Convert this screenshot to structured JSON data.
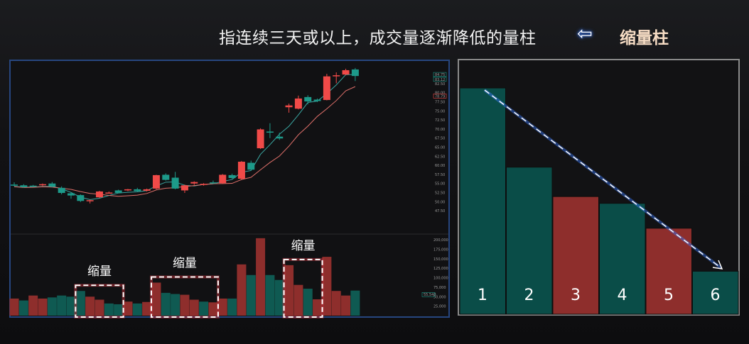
{
  "header": {
    "definition": "指连续三天或以上，成交量逐渐降低的量柱",
    "arrow_icon": "left-arrow-icon",
    "term": "缩量柱"
  },
  "colors": {
    "up": "#f04a48",
    "down": "#1d9a8a",
    "vol_up": "#8e2e2c",
    "vol_down": "#0f5a52",
    "ma_fast": "#3aa5a0",
    "ma_slow": "#e0706a",
    "box": "#ffffff",
    "frame": "#27467f"
  },
  "chart_data": [
    {
      "type": "candlestick",
      "price_axis": {
        "ticks": [
          "82.50",
          "80.00",
          "77.50",
          "75.00",
          "72.50",
          "70.00",
          "67.50",
          "65.00",
          "62.50",
          "60.00",
          "57.50",
          "55.00",
          "52.50",
          "50.00",
          "47.50"
        ],
        "range": [
          47.5,
          87.5
        ]
      },
      "price_readouts": {
        "ma_fast": "84.75",
        "last": "83.12",
        "ma_slow": "78.79"
      },
      "candles": [
        [
          54.7,
          55.3,
          54.2,
          54.4
        ],
        [
          54.5,
          54.8,
          53.8,
          54.0
        ],
        [
          54.4,
          54.6,
          54.1,
          54.3
        ],
        [
          54.6,
          55.0,
          54.3,
          54.8
        ],
        [
          55.0,
          55.4,
          53.9,
          54.1
        ],
        [
          53.8,
          54.2,
          52.0,
          52.4
        ],
        [
          52.3,
          52.6,
          50.8,
          51.7
        ],
        [
          51.8,
          52.0,
          49.9,
          50.2
        ],
        [
          50.2,
          50.5,
          49.5,
          50.4
        ],
        [
          51.2,
          53.0,
          51.0,
          52.8
        ],
        [
          52.5,
          52.8,
          52.2,
          52.5
        ],
        [
          53.1,
          53.3,
          52.3,
          52.4
        ],
        [
          53.1,
          53.5,
          52.9,
          53.4
        ],
        [
          53.4,
          53.8,
          52.7,
          52.9
        ],
        [
          53.0,
          53.6,
          52.8,
          53.4
        ],
        [
          53.6,
          57.4,
          53.4,
          57.3
        ],
        [
          57.4,
          57.8,
          55.8,
          56.0
        ],
        [
          56.6,
          58.2,
          53.4,
          53.6
        ],
        [
          53.1,
          54.7,
          52.4,
          54.5
        ],
        [
          55.0,
          55.6,
          54.6,
          55.4
        ],
        [
          54.7,
          55.1,
          54.4,
          54.9
        ],
        [
          55.3,
          55.8,
          54.9,
          55.0
        ],
        [
          55.1,
          57.6,
          54.9,
          57.4
        ],
        [
          57.3,
          57.7,
          56.3,
          56.5
        ],
        [
          56.3,
          61.2,
          56.1,
          61.0
        ],
        [
          60.7,
          61.3,
          58.6,
          58.8
        ],
        [
          64.7,
          70.2,
          64.5,
          69.9
        ],
        [
          69.3,
          71.6,
          67.5,
          69.0
        ],
        [
          67.9,
          69.0,
          67.0,
          67.4
        ],
        [
          76.0,
          77.0,
          74.5,
          76.5
        ],
        [
          75.6,
          79.2,
          75.4,
          78.4
        ],
        [
          78.8,
          79.3,
          76.8,
          77.6
        ],
        [
          78.1,
          78.4,
          77.4,
          77.7
        ],
        [
          78.0,
          85.2,
          77.9,
          84.5
        ],
        [
          84.6,
          85.6,
          82.6,
          84.8
        ],
        [
          85.0,
          86.6,
          84.8,
          86.2
        ],
        [
          86.4,
          86.8,
          83.2,
          84.6
        ]
      ],
      "candle_fields": [
        "open",
        "high",
        "low",
        "close"
      ],
      "volume_axis": {
        "ticks": [
          "200,000",
          "175,000",
          "150,000",
          "125,000",
          "100,000",
          "75,000",
          "50,000",
          "25,000"
        ],
        "range": [
          0,
          200000
        ]
      },
      "volume_readout": "55,540",
      "volume": [
        45000,
        40000,
        53000,
        45000,
        48000,
        53000,
        50000,
        65000,
        50000,
        42000,
        32000,
        30000,
        37000,
        32000,
        36000,
        87000,
        60000,
        57000,
        55000,
        42000,
        37000,
        35000,
        45000,
        45000,
        135000,
        107000,
        204000,
        107000,
        94000,
        133000,
        81000,
        71000,
        43000,
        155000,
        65000,
        53000,
        66000
      ],
      "volume_color": [
        "up",
        "down",
        "up",
        "up",
        "down",
        "down",
        "down",
        "down",
        "up",
        "up",
        "down",
        "down",
        "up",
        "down",
        "up",
        "up",
        "down",
        "down",
        "up",
        "up",
        "down",
        "up",
        "up",
        "down",
        "up",
        "down",
        "up",
        "down",
        "down",
        "up",
        "up",
        "down",
        "up",
        "up",
        "up",
        "up",
        "down"
      ],
      "annotations": [
        {
          "label": "缩量",
          "from_bar": 7,
          "to_bar": 11
        },
        {
          "label": "缩量",
          "from_bar": 15,
          "to_bar": 21
        },
        {
          "label": "缩量",
          "from_bar": 29,
          "to_bar": 32
        }
      ]
    },
    {
      "type": "bar",
      "categories": [
        "1",
        "2",
        "3",
        "4",
        "5",
        "6"
      ],
      "values": [
        100,
        65,
        52,
        49,
        38,
        19
      ],
      "colors": [
        "down",
        "down",
        "up",
        "down",
        "up",
        "down"
      ],
      "trend_arrow": "dashed-down-arrow"
    }
  ]
}
